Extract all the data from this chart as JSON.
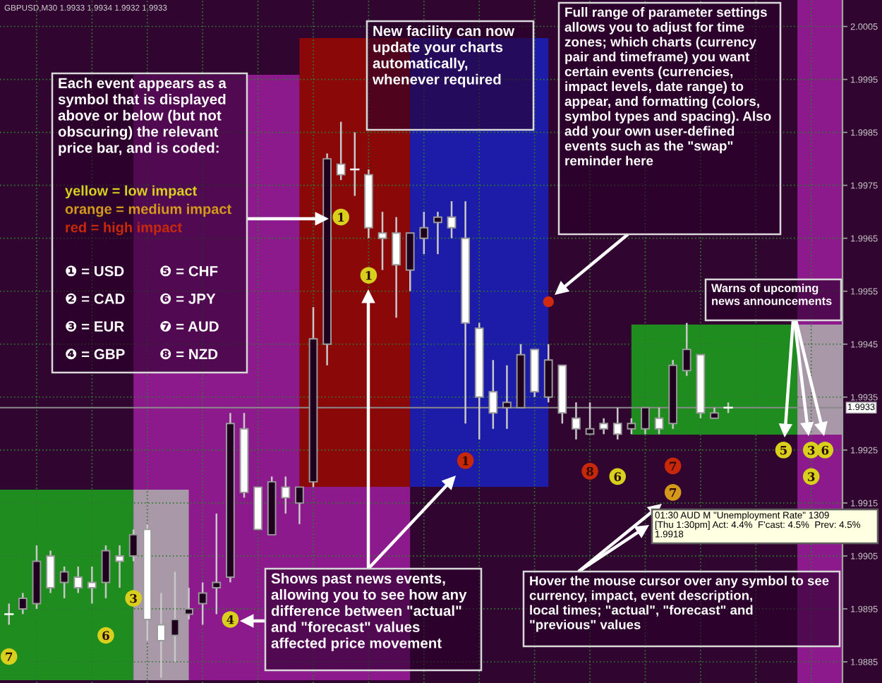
{
  "chart_data": {
    "type": "candlestick",
    "title": "GBPUSD,M30 1.9933 1.9934 1.9932 1.9933",
    "categories": [
      null,
      null,
      null,
      null,
      null,
      null,
      null,
      null,
      null,
      null,
      null,
      null,
      null,
      null,
      null,
      null,
      null,
      null,
      null,
      null,
      null,
      null,
      null,
      null,
      null,
      null,
      null,
      null,
      null,
      null,
      null,
      null,
      null,
      null,
      null,
      null,
      null,
      null,
      null,
      null,
      null,
      null,
      null,
      null,
      null,
      null,
      null,
      null,
      null,
      null,
      null,
      null,
      null,
      null,
      null,
      null,
      null,
      null,
      null,
      null,
      null
    ],
    "ohlc": [
      [
        1.9894,
        1.9896,
        1.9892,
        1.9894
      ],
      [
        1.9895,
        1.9898,
        1.9894,
        1.9897
      ],
      [
        1.9896,
        1.9907,
        1.9895,
        1.9904
      ],
      [
        1.9905,
        1.9906,
        1.9898,
        1.9899
      ],
      [
        1.99,
        1.9903,
        1.9897,
        1.9902
      ],
      [
        1.9901,
        1.9903,
        1.9898,
        1.9899
      ],
      [
        1.99,
        1.9903,
        1.9896,
        1.9899
      ],
      [
        1.99,
        1.9907,
        1.9897,
        1.9906
      ],
      [
        1.9905,
        1.9907,
        1.9899,
        1.9904
      ],
      [
        1.9905,
        1.991,
        1.9904,
        1.9909
      ],
      [
        1.991,
        1.9911,
        1.9889,
        1.9893
      ],
      [
        1.9892,
        1.9898,
        1.9882,
        1.9889
      ],
      [
        1.989,
        1.9902,
        1.9885,
        1.9893
      ],
      [
        1.9894,
        1.9899,
        1.9893,
        1.9895
      ],
      [
        1.9896,
        1.99,
        1.9892,
        1.9898
      ],
      [
        1.9899,
        1.9913,
        1.9894,
        1.99
      ],
      [
        1.9901,
        1.9932,
        1.99,
        1.993
      ],
      [
        1.9929,
        1.9932,
        1.9916,
        1.9917
      ],
      [
        1.9918,
        1.9918,
        1.991,
        1.991
      ],
      [
        1.9909,
        1.992,
        1.9909,
        1.9919
      ],
      [
        1.9918,
        1.992,
        1.9913,
        1.9916
      ],
      [
        1.9915,
        1.9918,
        1.9911,
        1.9918
      ],
      [
        1.9919,
        1.9952,
        1.9918,
        1.9946
      ],
      [
        1.9945,
        1.9981,
        1.9941,
        1.998
      ],
      [
        1.9979,
        1.9987,
        1.9976,
        1.9977
      ],
      [
        1.9978,
        1.9985,
        1.9973,
        1.9978
      ],
      [
        1.9977,
        1.9978,
        1.9965,
        1.9967
      ],
      [
        1.9966,
        1.997,
        1.9959,
        1.9965
      ],
      [
        1.9966,
        1.9969,
        1.995,
        1.996
      ],
      [
        1.9959,
        1.9966,
        1.9955,
        1.9966
      ],
      [
        1.9965,
        1.997,
        1.9962,
        1.9967
      ],
      [
        1.9968,
        1.997,
        1.9962,
        1.9969
      ],
      [
        1.9969,
        1.9972,
        1.9965,
        1.9967
      ],
      [
        1.9965,
        1.9972,
        1.993,
        1.9949
      ],
      [
        1.9948,
        1.9949,
        1.9927,
        1.9935
      ],
      [
        1.9936,
        1.9942,
        1.9929,
        1.9932
      ],
      [
        1.9933,
        1.9941,
        1.9929,
        1.9934
      ],
      [
        1.9933,
        1.9945,
        1.9933,
        1.9943
      ],
      [
        1.9944,
        1.9944,
        1.9935,
        1.9936
      ],
      [
        1.9935,
        1.9945,
        1.9934,
        1.9942
      ],
      [
        1.9941,
        1.9941,
        1.993,
        1.9932
      ],
      [
        1.9931,
        1.9934,
        1.9927,
        1.9929
      ],
      [
        1.9928,
        1.9934,
        1.9928,
        1.9929
      ],
      [
        1.993,
        1.9931,
        1.9928,
        1.9929
      ],
      [
        1.993,
        1.9933,
        1.9927,
        1.9928
      ],
      [
        1.9929,
        1.9931,
        1.9928,
        1.993
      ],
      [
        1.9929,
        1.9933,
        1.9928,
        1.9933
      ],
      [
        1.9931,
        1.9933,
        1.9928,
        1.9929
      ],
      [
        1.993,
        1.9942,
        1.9929,
        1.9941
      ],
      [
        1.994,
        1.9949,
        1.9939,
        1.9944
      ],
      [
        1.9943,
        1.9943,
        1.9931,
        1.9932
      ],
      [
        1.9931,
        1.9933,
        1.9931,
        1.9932
      ],
      [
        1.9933,
        1.9934,
        1.9932,
        1.9933
      ],
      null,
      null,
      null,
      null,
      null,
      null,
      null,
      null
    ],
    "colors": [
      "#ffffff",
      "#1e001e",
      "#1e001e",
      "#ffffff",
      "#1e001e",
      "#ffffff",
      "#ffffff",
      "#1e001e",
      "#ffffff",
      "#1e001e",
      "#ffffff",
      "#ffffff",
      "#1e001e",
      "#1e001e",
      "#1e001e",
      "#1e001e",
      "#1e001e",
      "#ffffff",
      "#ffffff",
      "#1e001e",
      "#ffffff",
      "#1e001e",
      "#1e001e",
      "#1e001e",
      "#ffffff",
      "#ffffff",
      "#ffffff",
      "#ffffff",
      "#ffffff",
      "#1e001e",
      "#1e001e",
      "#1e001e",
      "#ffffff",
      "#ffffff",
      "#ffffff",
      "#ffffff",
      "#1e001e",
      "#1e001e",
      "#ffffff",
      "#1e001e",
      "#ffffff",
      "#ffffff",
      "#1e001e",
      "#ffffff",
      "#ffffff",
      "#1e001e",
      "#1e001e",
      "#ffffff",
      "#1e001e",
      "#1e001e",
      "#ffffff",
      "#1e001e",
      "#ffffff",
      null,
      null,
      null,
      null,
      null,
      null,
      null,
      null
    ],
    "series": [
      {
        "type": "scatter",
        "name": "7",
        "color": "#d8d01c",
        "marker": "circle",
        "values": [
          1.9886,
          null,
          null,
          null,
          null,
          null,
          null,
          null,
          null,
          null,
          null,
          null,
          null,
          null,
          null,
          null,
          null,
          null,
          null,
          null,
          null,
          null,
          null,
          null,
          null,
          null,
          null,
          null,
          null,
          null,
          null,
          null,
          null,
          null,
          null,
          null,
          null,
          null,
          null,
          null,
          null,
          null,
          null,
          null,
          null,
          null,
          null,
          null,
          null,
          null,
          null,
          null,
          null,
          null,
          null,
          null,
          null,
          null,
          null,
          null,
          null
        ]
      },
      {
        "type": "scatter",
        "name": "6",
        "color": "#d8d01c",
        "marker": "circle",
        "values": [
          null,
          null,
          null,
          null,
          null,
          null,
          null,
          1.989,
          null,
          null,
          null,
          null,
          null,
          null,
          null,
          null,
          null,
          null,
          null,
          null,
          null,
          null,
          null,
          null,
          null,
          null,
          null,
          null,
          null,
          null,
          null,
          null,
          null,
          null,
          null,
          null,
          null,
          null,
          null,
          null,
          null,
          null,
          null,
          null,
          1.992,
          null,
          null,
          null,
          null,
          null,
          null,
          null,
          null,
          null,
          null,
          null,
          null,
          null,
          null,
          1.9925,
          null
        ]
      },
      {
        "type": "scatter",
        "name": "3",
        "color": "#d8d01c",
        "marker": "circle",
        "values": [
          null,
          null,
          null,
          null,
          null,
          null,
          null,
          null,
          null,
          1.9897,
          null,
          null,
          null,
          null,
          null,
          null,
          null,
          null,
          null,
          null,
          null,
          null,
          null,
          null,
          null,
          null,
          null,
          null,
          null,
          null,
          null,
          null,
          null,
          null,
          null,
          null,
          null,
          null,
          null,
          null,
          null,
          null,
          null,
          null,
          null,
          null,
          null,
          null,
          null,
          null,
          null,
          null,
          null,
          null,
          null,
          null,
          null,
          null,
          1.9925,
          null,
          null
        ]
      },
      {
        "type": "scatter",
        "name": "3",
        "color": "#d8d01c",
        "marker": "circle",
        "values": [
          null,
          null,
          null,
          null,
          null,
          null,
          null,
          null,
          null,
          null,
          null,
          null,
          null,
          null,
          null,
          null,
          null,
          null,
          null,
          null,
          null,
          null,
          null,
          null,
          null,
          null,
          null,
          null,
          null,
          null,
          null,
          null,
          null,
          null,
          null,
          null,
          null,
          null,
          null,
          null,
          null,
          null,
          null,
          null,
          null,
          null,
          null,
          null,
          null,
          null,
          null,
          null,
          null,
          null,
          null,
          null,
          null,
          null,
          1.992,
          null,
          null
        ]
      },
      {
        "type": "scatter",
        "name": "4",
        "color": "#d8d01c",
        "marker": "circle",
        "values": [
          null,
          null,
          null,
          null,
          null,
          null,
          null,
          null,
          null,
          null,
          null,
          null,
          null,
          null,
          null,
          null,
          1.9893,
          null,
          null,
          null,
          null,
          null,
          null,
          null,
          null,
          null,
          null,
          null,
          null,
          null,
          null,
          null,
          null,
          null,
          null,
          null,
          null,
          null,
          null,
          null,
          null,
          null,
          null,
          null,
          null,
          null,
          null,
          null,
          null,
          null,
          null,
          null,
          null,
          null,
          null,
          null,
          null,
          null,
          null,
          null,
          null
        ]
      },
      {
        "type": "scatter",
        "name": "1",
        "color": "#d8d01c",
        "marker": "circle",
        "values": [
          null,
          null,
          null,
          null,
          null,
          null,
          null,
          null,
          null,
          null,
          null,
          null,
          null,
          null,
          null,
          null,
          null,
          null,
          null,
          null,
          null,
          null,
          null,
          null,
          1.9969,
          null,
          1.9958,
          null,
          null,
          null,
          null,
          null,
          null,
          null,
          null,
          null,
          null,
          null,
          null,
          null,
          null,
          null,
          null,
          null,
          null,
          null,
          null,
          null,
          null,
          null,
          null,
          null,
          null,
          null,
          null,
          null,
          null,
          null,
          null,
          null,
          null
        ]
      },
      {
        "type": "scatter",
        "name": "5",
        "color": "#d8d01c",
        "marker": "circle",
        "values": [
          null,
          null,
          null,
          null,
          null,
          null,
          null,
          null,
          null,
          null,
          null,
          null,
          null,
          null,
          null,
          null,
          null,
          null,
          null,
          null,
          null,
          null,
          null,
          null,
          null,
          null,
          null,
          null,
          null,
          null,
          null,
          null,
          null,
          null,
          null,
          null,
          null,
          null,
          null,
          null,
          null,
          null,
          null,
          null,
          null,
          null,
          null,
          null,
          null,
          null,
          null,
          null,
          null,
          null,
          null,
          null,
          1.9925,
          null,
          null,
          null,
          null
        ]
      },
      {
        "type": "scatter",
        "name": "7",
        "color": "#d4981a",
        "marker": "circle",
        "values": [
          null,
          null,
          null,
          null,
          null,
          null,
          null,
          null,
          null,
          null,
          null,
          null,
          null,
          null,
          null,
          null,
          null,
          null,
          null,
          null,
          null,
          null,
          null,
          null,
          null,
          null,
          null,
          null,
          null,
          null,
          null,
          null,
          null,
          null,
          null,
          null,
          null,
          null,
          null,
          null,
          null,
          null,
          null,
          null,
          null,
          null,
          null,
          null,
          1.9917,
          null,
          null,
          null,
          null,
          null,
          null,
          null,
          null,
          null,
          null,
          null,
          null
        ]
      },
      {
        "type": "scatter",
        "name": "1",
        "color": "#c8280a",
        "marker": "circle",
        "values": [
          null,
          null,
          null,
          null,
          null,
          null,
          null,
          null,
          null,
          null,
          null,
          null,
          null,
          null,
          null,
          null,
          null,
          null,
          null,
          null,
          null,
          null,
          null,
          null,
          null,
          null,
          null,
          null,
          null,
          null,
          null,
          null,
          null,
          1.9923,
          null,
          null,
          null,
          null,
          null,
          null,
          null,
          null,
          null,
          null,
          null,
          null,
          null,
          null,
          null,
          null,
          null,
          null,
          null,
          null,
          null,
          null,
          null,
          null,
          null,
          null,
          null
        ]
      },
      {
        "type": "scatter",
        "name": "8",
        "color": "#c8280a",
        "marker": "circle",
        "values": [
          null,
          null,
          null,
          null,
          null,
          null,
          null,
          null,
          null,
          null,
          null,
          null,
          null,
          null,
          null,
          null,
          null,
          null,
          null,
          null,
          null,
          null,
          null,
          null,
          null,
          null,
          null,
          null,
          null,
          null,
          null,
          null,
          null,
          null,
          null,
          null,
          null,
          null,
          null,
          null,
          null,
          null,
          1.9921,
          null,
          null,
          null,
          null,
          null,
          null,
          null,
          null,
          null,
          null,
          null,
          null,
          null,
          null,
          null,
          null,
          null,
          null
        ]
      },
      {
        "type": "scatter",
        "name": "7",
        "color": "#c8280a",
        "marker": "circle",
        "values": [
          null,
          null,
          null,
          null,
          null,
          null,
          null,
          null,
          null,
          null,
          null,
          null,
          null,
          null,
          null,
          null,
          null,
          null,
          null,
          null,
          null,
          null,
          null,
          null,
          null,
          null,
          null,
          null,
          null,
          null,
          null,
          null,
          null,
          null,
          null,
          null,
          null,
          null,
          null,
          null,
          null,
          null,
          null,
          null,
          null,
          null,
          null,
          null,
          1.9922,
          null,
          null,
          null,
          null,
          null,
          null,
          null,
          null,
          null,
          null,
          null,
          null
        ]
      },
      {
        "type": "scatter",
        "color": "#d02a10",
        "marker": "circle",
        "values": [
          null,
          null,
          null,
          null,
          null,
          null,
          null,
          null,
          null,
          null,
          null,
          null,
          null,
          null,
          null,
          null,
          null,
          null,
          null,
          null,
          null,
          null,
          null,
          null,
          null,
          null,
          null,
          null,
          null,
          null,
          null,
          null,
          null,
          null,
          null,
          null,
          null,
          null,
          null,
          1.9953,
          null,
          null,
          null,
          null,
          null,
          null,
          null,
          null,
          null,
          null,
          null,
          null,
          null,
          null,
          null,
          null,
          null,
          null,
          null,
          null,
          null
        ]
      }
    ],
    "ylim": [
      1.9881,
      2.001
    ],
    "yticks": [
      1.9885,
      1.9895,
      1.9905,
      1.9915,
      1.9925,
      1.9935,
      1.9945,
      1.9955,
      1.9965,
      1.9975,
      1.9985,
      1.9995,
      2.0005
    ],
    "tick_labels": "y",
    "grid": true,
    "ref_lines": [
      {
        "axis": "y",
        "value": 1.9933,
        "label": "1.9933",
        "color": "#8a8a8a",
        "line_style": "solid"
      }
    ],
    "annotations": [
      "Each event appears as a\nsymbol that is displayed\nabove or below (but not\nobscuring) the relevant\nprice bar, and is coded:",
      "yellow = low impact",
      "orange = medium impact",
      "red = high impact",
      "❶ = USD",
      "❺ = CHF",
      "❷ = CAD",
      "❻ = JPY",
      "❸ = EUR",
      "❼ = AUD",
      "❹ = GBP",
      "❽ = NZD",
      "New facility can now\nupdate your charts\nautomatically,\nwhenever required",
      "Full range of parameter settings\nallows you to adjust for time\nzones; which charts (currency\npair and timeframe) you want\ncertain events (currencies,\nimpact levels, date range) to\nappear, and formatting (colors,\nsymbol types and spacing). Also\nadd your own user-defined\nevents such as the \"swap\"\nreminder here",
      "Warns of upcoming\nnews announcements",
      "Shows past news events,\nallowing you to see how any\ndifference between \"actual\"\nand \"forecast\" values\naffected price movement",
      "Hover the mouse cursor over any symbol to see\ncurrency, impact, event description,\nlocal times; \"actual\", \"forecast\" and\n\"previous\" values",
      "01:30 AUD M \"Unemployment Rate\" 1309\n[Thu 1:30pm] Act: 4.4%  F'cast: 4.5%  Prev: 4.5%\n1.9918"
    ]
  }
}
